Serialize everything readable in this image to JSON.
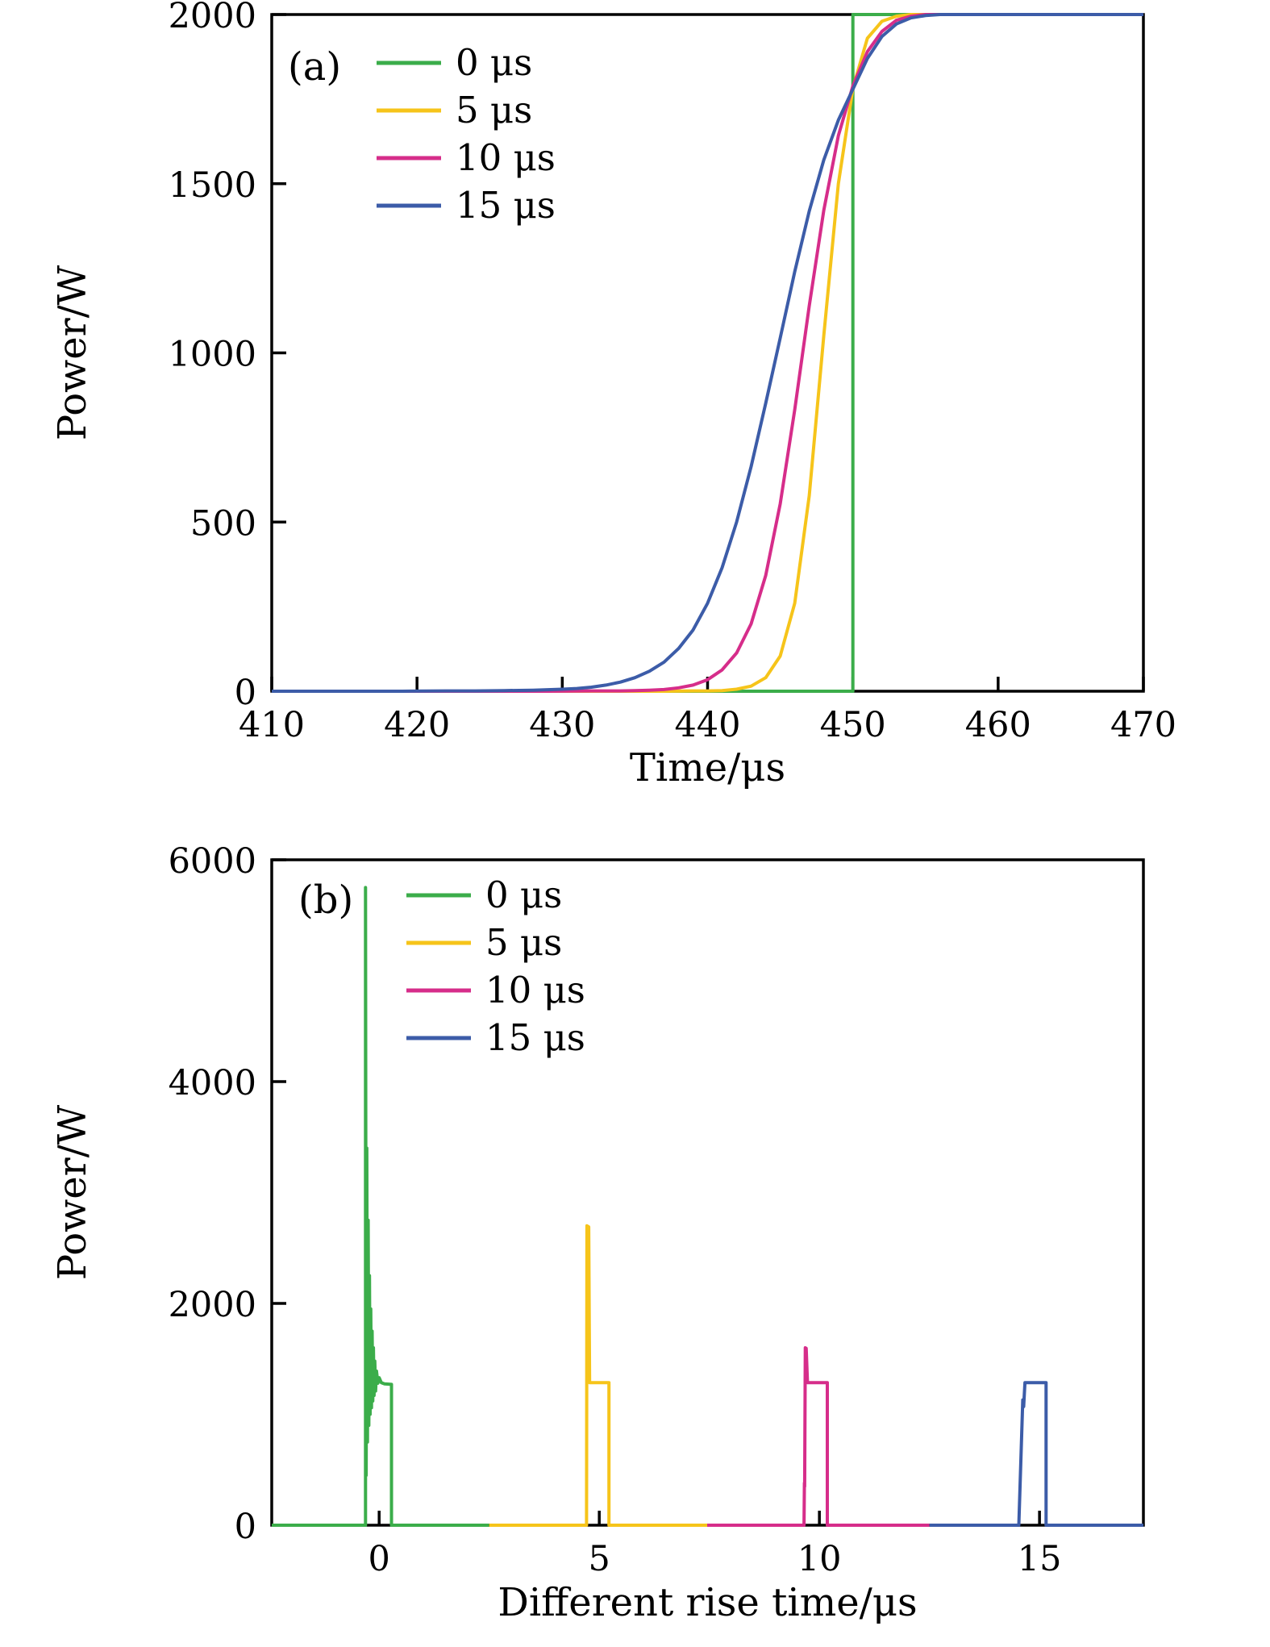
{
  "figure": {
    "background": "#ffffff",
    "axis_color": "#000000"
  },
  "chart_data": [
    {
      "id": "panel-a",
      "type": "line",
      "panel_label": "(a)",
      "xlabel": "Time/μs",
      "ylabel": "Power/W",
      "xlim": [
        410,
        470
      ],
      "ylim": [
        0,
        2000
      ],
      "xticks": [
        410,
        420,
        430,
        440,
        450,
        460,
        470
      ],
      "yticks": [
        0,
        500,
        1000,
        1500,
        2000
      ],
      "grid": false,
      "legend_position": "upper-left",
      "series": [
        {
          "name": "0 μs",
          "color": "#3bad4a",
          "points": [
            [
              410,
              0
            ],
            [
              450,
              0
            ],
            [
              450,
              2000
            ],
            [
              470,
              2000
            ]
          ]
        },
        {
          "name": "5 μs",
          "color": "#f6c41a",
          "points": [
            [
              410,
              0
            ],
            [
              437,
              0
            ],
            [
              439,
              1
            ],
            [
              440,
              1
            ],
            [
              441,
              2
            ],
            [
              442,
              6
            ],
            [
              443,
              15
            ],
            [
              444,
              40
            ],
            [
              445,
              104
            ],
            [
              446,
              260
            ],
            [
              447,
              578
            ],
            [
              448,
              1050
            ],
            [
              449,
              1500
            ],
            [
              450,
              1782
            ],
            [
              451,
              1930
            ],
            [
              452,
              1980
            ],
            [
              453,
              1995
            ],
            [
              454,
              2000
            ],
            [
              470,
              2000
            ]
          ]
        },
        {
          "name": "10 μs",
          "color": "#d62d8a",
          "points": [
            [
              410,
              0
            ],
            [
              429,
              0
            ],
            [
              432,
              1
            ],
            [
              434,
              1
            ],
            [
              435,
              2
            ],
            [
              436,
              3
            ],
            [
              437,
              5
            ],
            [
              438,
              10
            ],
            [
              439,
              18
            ],
            [
              440,
              34
            ],
            [
              441,
              63
            ],
            [
              442,
              113
            ],
            [
              443,
              199
            ],
            [
              444,
              342
            ],
            [
              445,
              554
            ],
            [
              446,
              832
            ],
            [
              447,
              1139
            ],
            [
              448,
              1421
            ],
            [
              449,
              1642
            ],
            [
              450,
              1789
            ],
            [
              451,
              1890
            ],
            [
              452,
              1950
            ],
            [
              453,
              1983
            ],
            [
              454,
              1995
            ],
            [
              455,
              2000
            ],
            [
              470,
              2000
            ]
          ]
        },
        {
          "name": "15 μs",
          "color": "#3c5ca8",
          "points": [
            [
              410,
              0
            ],
            [
              419,
              0
            ],
            [
              422,
              1
            ],
            [
              424,
              1
            ],
            [
              426,
              2
            ],
            [
              428,
              3
            ],
            [
              430,
              6
            ],
            [
              431,
              8
            ],
            [
              432,
              12
            ],
            [
              433,
              18
            ],
            [
              434,
              27
            ],
            [
              435,
              40
            ],
            [
              436,
              59
            ],
            [
              437,
              86
            ],
            [
              438,
              126
            ],
            [
              439,
              181
            ],
            [
              440,
              260
            ],
            [
              441,
              365
            ],
            [
              442,
              500
            ],
            [
              443,
              664
            ],
            [
              444,
              851
            ],
            [
              445,
              1044
            ],
            [
              446,
              1240
            ],
            [
              447,
              1419
            ],
            [
              448,
              1570
            ],
            [
              449,
              1688
            ],
            [
              450,
              1779
            ],
            [
              451,
              1870
            ],
            [
              452,
              1935
            ],
            [
              453,
              1972
            ],
            [
              454,
              1990
            ],
            [
              455,
              1997
            ],
            [
              456,
              2000
            ],
            [
              470,
              2000
            ]
          ]
        }
      ]
    },
    {
      "id": "panel-b",
      "type": "line",
      "panel_label": "(b)",
      "xlabel": "Different rise time/μs",
      "ylabel": "Power/W",
      "xlim": [
        -2.44,
        17.36
      ],
      "ylim": [
        0,
        6000
      ],
      "xticks": [
        0,
        5,
        10,
        15
      ],
      "yticks": [
        0,
        2000,
        4000,
        6000
      ],
      "grid": false,
      "legend_position": "upper-left",
      "series": [
        {
          "name": "0 μs",
          "color": "#3bad4a",
          "points": [
            [
              -2.44,
              0
            ],
            [
              -0.31,
              0
            ],
            [
              -0.31,
              5750
            ],
            [
              -0.295,
              450
            ],
            [
              -0.28,
              3400
            ],
            [
              -0.265,
              750
            ],
            [
              -0.25,
              2750
            ],
            [
              -0.235,
              900
            ],
            [
              -0.22,
              2250
            ],
            [
              -0.205,
              1000
            ],
            [
              -0.19,
              1950
            ],
            [
              -0.175,
              1060
            ],
            [
              -0.16,
              1750
            ],
            [
              -0.145,
              1120
            ],
            [
              -0.13,
              1600
            ],
            [
              -0.115,
              1170
            ],
            [
              -0.1,
              1480
            ],
            [
              -0.08,
              1210
            ],
            [
              -0.06,
              1390
            ],
            [
              -0.03,
              1280
            ],
            [
              0,
              1330
            ],
            [
              0.05,
              1285
            ],
            [
              0.12,
              1275
            ],
            [
              0.28,
              1270
            ],
            [
              0.28,
              0
            ],
            [
              2.5,
              0
            ]
          ]
        },
        {
          "name": "5 μs",
          "color": "#f6c41a",
          "points": [
            [
              2.5,
              0
            ],
            [
              4.71,
              0
            ],
            [
              4.72,
              2700
            ],
            [
              4.76,
              2690
            ],
            [
              4.78,
              1285
            ],
            [
              5.22,
              1285
            ],
            [
              5.22,
              0
            ],
            [
              7.45,
              0
            ]
          ]
        },
        {
          "name": "10 μs",
          "color": "#d62d8a",
          "points": [
            [
              7.45,
              0
            ],
            [
              9.65,
              0
            ],
            [
              9.66,
              380
            ],
            [
              9.665,
              350
            ],
            [
              9.68,
              1600
            ],
            [
              9.7,
              1595
            ],
            [
              9.73,
              1285
            ],
            [
              10.18,
              1285
            ],
            [
              10.18,
              0
            ],
            [
              12.5,
              0
            ]
          ]
        },
        {
          "name": "15 μs",
          "color": "#3c5ca8",
          "points": [
            [
              12.5,
              0
            ],
            [
              14.53,
              0
            ],
            [
              14.62,
              1130
            ],
            [
              14.64,
              1070
            ],
            [
              14.67,
              1285
            ],
            [
              15.15,
              1285
            ],
            [
              15.15,
              0
            ],
            [
              17.36,
              0
            ]
          ]
        }
      ]
    }
  ]
}
